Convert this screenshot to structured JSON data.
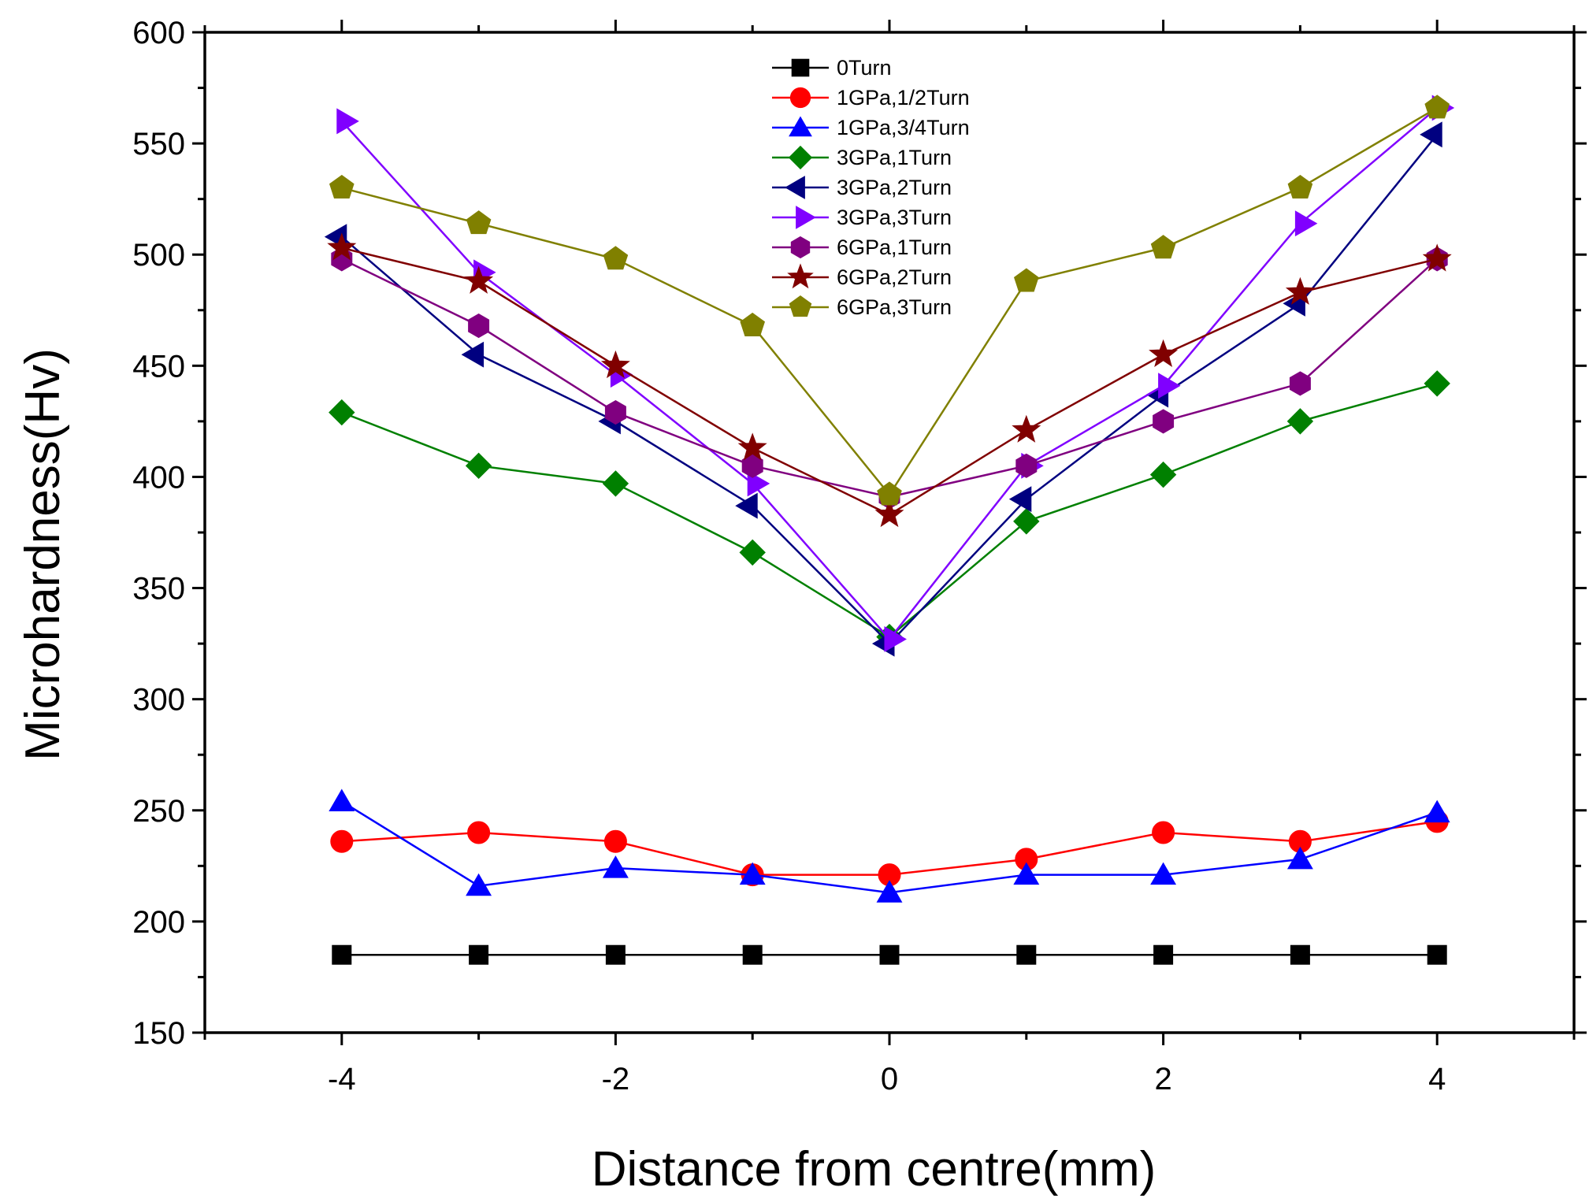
{
  "chart_data": {
    "type": "line",
    "title": "",
    "xlabel": "Distance from centre(mm)",
    "ylabel": "Microhardness(Hv)",
    "xlim": [
      -5,
      5
    ],
    "ylim": [
      150,
      600
    ],
    "xticks": [
      -4,
      -2,
      0,
      2,
      4
    ],
    "xtick_labels": [
      "-4",
      "-2",
      "0",
      "2",
      "4"
    ],
    "yticks": [
      150,
      200,
      250,
      300,
      350,
      400,
      450,
      500,
      550,
      600
    ],
    "ytick_labels": [
      "150",
      "200",
      "250",
      "300",
      "350",
      "400",
      "450",
      "500",
      "550",
      "600"
    ],
    "grid": false,
    "legend_position": "top-center",
    "x": [
      -4,
      -3,
      -2,
      -1,
      0,
      1,
      2,
      3,
      4
    ],
    "series": [
      {
        "name": "0Turn",
        "color": "#000000",
        "marker": "square",
        "values": [
          185,
          185,
          185,
          185,
          185,
          185,
          185,
          185,
          185
        ]
      },
      {
        "name": "1GPa,1/2Turn",
        "color": "#ff0000",
        "marker": "circle",
        "values": [
          236,
          240,
          236,
          221,
          221,
          228,
          240,
          236,
          245
        ]
      },
      {
        "name": "1GPa,3/4Turn",
        "color": "#0000ff",
        "marker": "triangle-up",
        "values": [
          254,
          216,
          224,
          221,
          213,
          221,
          221,
          228,
          249
        ]
      },
      {
        "name": "3GPa,1Turn",
        "color": "#008000",
        "marker": "diamond",
        "values": [
          429,
          405,
          397,
          366,
          328,
          380,
          401,
          425,
          442
        ]
      },
      {
        "name": "3GPa,2Turn",
        "color": "#000080",
        "marker": "triangle-left",
        "values": [
          508,
          455,
          425,
          387,
          325,
          390,
          437,
          478,
          554
        ]
      },
      {
        "name": "3GPa,3Turn",
        "color": "#8000ff",
        "marker": "triangle-right",
        "values": [
          560,
          492,
          446,
          397,
          327,
          405,
          441,
          514,
          566
        ]
      },
      {
        "name": "6GPa,1Turn",
        "color": "#800080",
        "marker": "hexagon",
        "values": [
          498,
          468,
          429,
          405,
          391,
          405,
          425,
          442,
          498
        ]
      },
      {
        "name": "6GPa,2Turn",
        "color": "#800000",
        "marker": "star",
        "values": [
          503,
          488,
          450,
          413,
          383,
          421,
          455,
          483,
          498
        ]
      },
      {
        "name": "6GPa,3Turn",
        "color": "#808000",
        "marker": "pentagon",
        "values": [
          530,
          514,
          498,
          468,
          392,
          488,
          503,
          530,
          566
        ]
      }
    ]
  }
}
